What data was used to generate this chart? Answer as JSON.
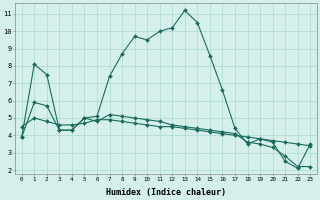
{
  "xlabel": "Humidex (Indice chaleur)",
  "bg_color": "#d5f0eb",
  "line_color": "#1a6b5e",
  "grid_color": "#a8d8d0",
  "xlim": [
    -0.5,
    23.5
  ],
  "ylim": [
    1.8,
    11.6
  ],
  "yticks": [
    2,
    3,
    4,
    5,
    6,
    7,
    8,
    9,
    10,
    11
  ],
  "xticks": [
    0,
    1,
    2,
    3,
    4,
    5,
    6,
    7,
    8,
    9,
    10,
    11,
    12,
    13,
    14,
    15,
    16,
    17,
    18,
    19,
    20,
    21,
    22,
    23
  ],
  "line1": [
    3.9,
    8.1,
    7.5,
    4.3,
    4.3,
    5.0,
    5.1,
    7.4,
    8.7,
    9.7,
    9.5,
    10.0,
    10.2,
    11.2,
    10.5,
    8.6,
    6.6,
    4.4,
    3.5,
    3.8,
    3.6,
    2.5,
    2.1,
    3.5
  ],
  "line2": [
    4.5,
    5.0,
    4.8,
    4.6,
    4.6,
    4.7,
    4.9,
    4.9,
    4.8,
    4.7,
    4.6,
    4.5,
    4.5,
    4.4,
    4.3,
    4.2,
    4.1,
    4.0,
    3.9,
    3.8,
    3.7,
    3.6,
    3.5,
    3.4
  ],
  "line3": [
    3.9,
    5.9,
    5.7,
    4.3,
    4.3,
    5.0,
    4.8,
    5.2,
    5.1,
    5.0,
    4.9,
    4.8,
    4.6,
    4.5,
    4.4,
    4.3,
    4.2,
    4.1,
    3.6,
    3.5,
    3.3,
    2.8,
    2.2,
    2.2
  ]
}
